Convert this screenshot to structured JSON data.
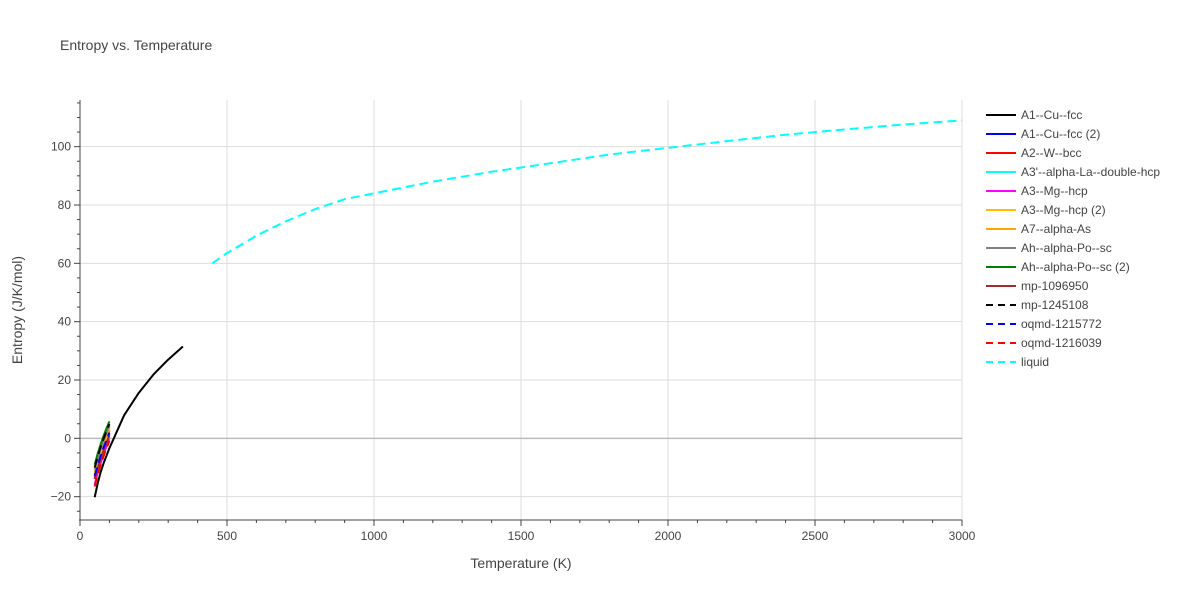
{
  "chart_data": {
    "type": "line",
    "title": "Entropy vs. Temperature",
    "xlabel": "Temperature (K)",
    "ylabel": "Entropy (J/K/mol)",
    "xlim": [
      0,
      3000
    ],
    "ylim": [
      -28,
      116
    ],
    "xticks": [
      0,
      500,
      1000,
      1500,
      2000,
      2500,
      3000
    ],
    "yticks": [
      -20,
      0,
      20,
      40,
      60,
      80,
      100
    ],
    "grid": true,
    "legend_position": "right",
    "series": [
      {
        "name": "A1--Cu--fcc",
        "color": "#000000",
        "dash": "solid",
        "x": [
          50,
          60,
          70,
          80,
          100,
          150,
          200,
          250,
          300,
          350
        ],
        "y": [
          -20.2,
          -15.5,
          -11.7,
          -8.6,
          -3.4,
          7.9,
          15.6,
          21.9,
          27.0,
          31.5
        ]
      },
      {
        "name": "A1--Cu--fcc (2)",
        "color": "#0000ff",
        "dash": "solid",
        "x": [
          50,
          60,
          70,
          80,
          90,
          100
        ],
        "y": [
          -12.5,
          -8.8,
          -5.6,
          -2.7,
          0.0,
          2.5
        ]
      },
      {
        "name": "A2--W--bcc",
        "color": "#ff0000",
        "dash": "solid",
        "x": [
          50,
          60,
          70,
          80,
          90,
          100
        ],
        "y": [
          -13.5,
          -9.8,
          -6.6,
          -3.7,
          -1.1,
          1.5
        ]
      },
      {
        "name": "A3'--alpha-La--double-hcp",
        "color": "#00ffff",
        "dash": "solid",
        "x": [
          50,
          60,
          70,
          80,
          90,
          100
        ],
        "y": [
          -11.0,
          -7.3,
          -4.1,
          -1.2,
          1.4,
          3.9
        ]
      },
      {
        "name": "A3--Mg--hcp",
        "color": "#ff00ff",
        "dash": "solid",
        "x": [
          50,
          60,
          70,
          80,
          90,
          100
        ],
        "y": [
          -15.8,
          -12.0,
          -8.6,
          -5.6,
          -2.8,
          -0.3
        ]
      },
      {
        "name": "A3--Mg--hcp (2)",
        "color": "#ffbf00",
        "dash": "solid",
        "x": [
          50,
          60,
          70,
          80,
          90,
          100
        ],
        "y": [
          -12.0,
          -8.3,
          -5.1,
          -2.2,
          0.4,
          2.9
        ]
      },
      {
        "name": "A7--alpha-As",
        "color": "#ffa500",
        "dash": "solid",
        "x": [
          50,
          60,
          70,
          80,
          90,
          100
        ],
        "y": [
          -11.5,
          -7.8,
          -4.6,
          -1.7,
          0.9,
          3.4
        ]
      },
      {
        "name": "Ah--alpha-Po--sc",
        "color": "#808080",
        "dash": "solid",
        "x": [
          50,
          60,
          70,
          80,
          90,
          100
        ],
        "y": [
          -10.5,
          -6.8,
          -3.6,
          -0.7,
          1.9,
          4.4
        ]
      },
      {
        "name": "Ah--alpha-Po--sc (2)",
        "color": "#008000",
        "dash": "solid",
        "x": [
          50,
          60,
          70,
          80,
          90,
          100
        ],
        "y": [
          -9.0,
          -5.3,
          -2.1,
          0.8,
          3.4,
          5.8
        ]
      },
      {
        "name": "mp-1096950",
        "color": "#a52a2a",
        "dash": "solid",
        "x": [
          50,
          60,
          70,
          80,
          90,
          100
        ],
        "y": [
          -14.0,
          -10.3,
          -7.1,
          -4.2,
          -1.6,
          0.9
        ]
      },
      {
        "name": "mp-1245108",
        "color": "#000000",
        "dash": "dash",
        "x": [
          50,
          60,
          70,
          80,
          90,
          100
        ],
        "y": [
          -10.0,
          -6.3,
          -3.1,
          -0.2,
          2.4,
          4.9
        ]
      },
      {
        "name": "oqmd-1215772",
        "color": "#0000ff",
        "dash": "dash",
        "x": [
          50,
          60,
          70,
          80,
          90,
          100
        ],
        "y": [
          -13.0,
          -9.3,
          -6.1,
          -3.2,
          -0.6,
          1.9
        ]
      },
      {
        "name": "oqmd-1216039",
        "color": "#ff0000",
        "dash": "dash",
        "x": [
          50,
          60,
          70,
          80,
          90,
          100
        ],
        "y": [
          -16.5,
          -12.6,
          -9.2,
          -6.2,
          -3.4,
          -0.9
        ]
      },
      {
        "name": "liquid",
        "color": "#00ffff",
        "dash": "dash",
        "x": [
          450,
          500,
          600,
          700,
          800,
          900,
          1000,
          1200,
          1400,
          1600,
          1800,
          2000,
          2200,
          2400,
          2600,
          2800,
          3000
        ],
        "y": [
          60.0,
          63.5,
          69.5,
          74.4,
          78.6,
          82.0,
          84.0,
          88.0,
          91.4,
          94.3,
          97.3,
          99.6,
          101.9,
          104.1,
          105.9,
          107.6,
          109.0
        ]
      }
    ]
  }
}
